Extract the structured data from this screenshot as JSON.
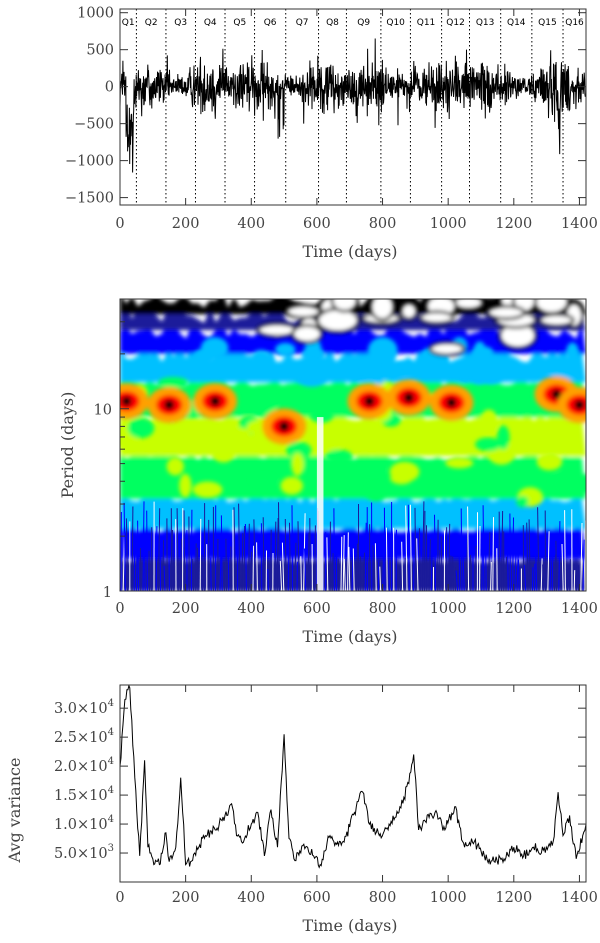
{
  "chart_data": [
    {
      "type": "line",
      "xlabel": "Time (days)",
      "ylabel": "",
      "xlim": [
        0,
        1420
      ],
      "ylim": [
        -1600,
        1050
      ],
      "x_ticks": [
        "0",
        "200",
        "400",
        "600",
        "800",
        "1000",
        "1200",
        "1400"
      ],
      "y_ticks": [
        "1000",
        "500",
        "0",
        "−500",
        "−1000",
        "−1500"
      ],
      "quarters": [
        {
          "label": "Q1",
          "start": 0
        },
        {
          "label": "Q2",
          "start": 50
        },
        {
          "label": "Q3",
          "start": 140
        },
        {
          "label": "Q4",
          "start": 230
        },
        {
          "label": "Q5",
          "start": 320
        },
        {
          "label": "Q6",
          "start": 410
        },
        {
          "label": "Q7",
          "start": 505
        },
        {
          "label": "Q8",
          "start": 605
        },
        {
          "label": "Q9",
          "start": 690
        },
        {
          "label": "Q10",
          "start": 795
        },
        {
          "label": "Q11",
          "start": 885
        },
        {
          "label": "Q12",
          "start": 980
        },
        {
          "label": "Q13",
          "start": 1065
        },
        {
          "label": "Q14",
          "start": 1160
        },
        {
          "label": "Q15",
          "start": 1255
        },
        {
          "label": "Q16",
          "start": 1350
        }
      ],
      "quarter_label_display": [
        "Q1",
        "Q2",
        "Q3",
        "Q4",
        "Q5",
        "Q6",
        "Q7",
        "Q8",
        "Q9",
        "Q10",
        "Q11",
        "Q12",
        "Q13",
        "Q14",
        "Q15",
        "Q16"
      ],
      "description": "light curve, mostly within ±500, dips to about −1150 near day 30"
    },
    {
      "type": "heatmap",
      "xlabel": "Time (days)",
      "ylabel": "Period (days)",
      "xlim": [
        0,
        1420
      ],
      "ylim": [
        1,
        40
      ],
      "y_scale": "log",
      "x_ticks": [
        "0",
        "200",
        "400",
        "600",
        "800",
        "1000",
        "1200",
        "1400"
      ],
      "y_ticks": [
        "1",
        "10"
      ],
      "colormap": [
        "#ffffff",
        "#1a1a9a",
        "#0000ff",
        "#00c0ff",
        "#00ff60",
        "#c8ff00",
        "#ffa000",
        "#ff0000",
        "#000000"
      ],
      "peaks": [
        {
          "time": 20,
          "period": 11
        },
        {
          "time": 150,
          "period": 10.5
        },
        {
          "time": 290,
          "period": 11
        },
        {
          "time": 500,
          "period": 8
        },
        {
          "time": 760,
          "period": 11
        },
        {
          "time": 880,
          "period": 11.5
        },
        {
          "time": 1010,
          "period": 10.8
        },
        {
          "time": 1330,
          "period": 12
        },
        {
          "time": 1400,
          "period": 10.5
        }
      ]
    },
    {
      "type": "line",
      "xlabel": "Time (days)",
      "ylabel": "Avg variance",
      "xlim": [
        0,
        1420
      ],
      "ylim": [
        0,
        34000
      ],
      "x_ticks": [
        "0",
        "200",
        "400",
        "600",
        "800",
        "1000",
        "1200",
        "1400"
      ],
      "y_ticks": [
        {
          "value": 5000,
          "mantissa": "5.0",
          "exponent": "3"
        },
        {
          "value": 10000,
          "mantissa": "1.0",
          "exponent": "4"
        },
        {
          "value": 15000,
          "mantissa": "1.5",
          "exponent": "4"
        },
        {
          "value": 20000,
          "mantissa": "2.0",
          "exponent": "4"
        },
        {
          "value": 25000,
          "mantissa": "2.5",
          "exponent": "4"
        },
        {
          "value": 30000,
          "mantissa": "3.0",
          "exponent": "4"
        }
      ],
      "series": [
        {
          "x": [
            0,
            15,
            30,
            45,
            60,
            75,
            85,
            100,
            120,
            140,
            150,
            170,
            185,
            200,
            215,
            240,
            260,
            290,
            320,
            340,
            355,
            370,
            400,
            420,
            440,
            460,
            480,
            500,
            515,
            530,
            560,
            590,
            610,
            640,
            660,
            680,
            700,
            720,
            740,
            760,
            790,
            820,
            850,
            880,
            895,
            910,
            930,
            960,
            990,
            1020,
            1050,
            1080,
            1110,
            1140,
            1170,
            1200,
            1230,
            1260,
            1290,
            1320,
            1335,
            1350,
            1370,
            1390,
            1410,
            1420
          ],
          "y": [
            20000,
            31500,
            33500,
            18000,
            4500,
            21000,
            6000,
            4000,
            3000,
            8500,
            3500,
            6000,
            18000,
            3000,
            3500,
            6000,
            8000,
            9000,
            11500,
            13500,
            8000,
            7000,
            10000,
            12000,
            4500,
            12500,
            6000,
            25500,
            7500,
            4000,
            6500,
            4500,
            3000,
            8000,
            6500,
            7000,
            9500,
            13000,
            15500,
            10000,
            8000,
            10000,
            12000,
            17000,
            22000,
            9000,
            10500,
            12000,
            9000,
            13000,
            6000,
            7000,
            4500,
            3500,
            4000,
            6000,
            4500,
            6000,
            5500,
            7000,
            15500,
            8000,
            11500,
            4000,
            8000,
            10000
          ]
        }
      ]
    }
  ]
}
